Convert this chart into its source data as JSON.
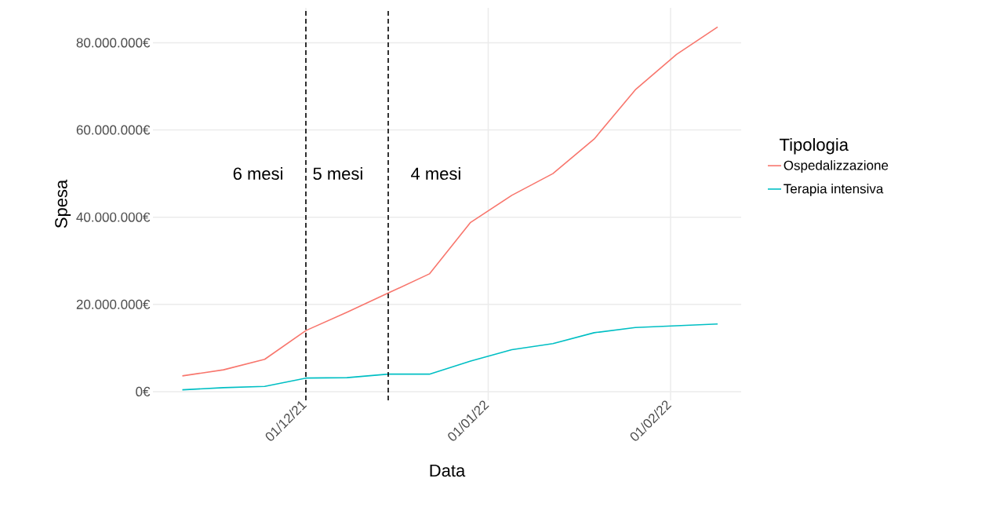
{
  "chart_data": {
    "type": "line",
    "xlabel": "Data",
    "ylabel": "Spesa",
    "legend_title": "Tipologia",
    "legend": "right",
    "grid": true,
    "x": [
      "2021-11-10",
      "2021-11-17",
      "2021-11-24",
      "2021-12-01",
      "2021-12-08",
      "2021-12-15",
      "2021-12-22",
      "2021-12-29",
      "2022-01-05",
      "2022-01-12",
      "2022-01-19",
      "2022-01-26",
      "2022-02-02",
      "2022-02-09"
    ],
    "series": [
      {
        "name": "Ospedalizzazione",
        "color": "#f8766d",
        "values": [
          3600000,
          5000000,
          7400000,
          14000000,
          18200000,
          22600000,
          27000000,
          38800000,
          45000000,
          50000000,
          57900000,
          69200000,
          77300000,
          83600000
        ]
      },
      {
        "name": "Terapia intensiva",
        "color": "#00bfc4",
        "values": [
          400000,
          900000,
          1200000,
          3100000,
          3200000,
          4000000,
          4000000,
          7000000,
          9600000,
          11000000,
          13500000,
          14700000,
          15100000,
          15500000
        ]
      }
    ],
    "xlim": [
      "2021-11-05",
      "2022-02-13"
    ],
    "ylim": [
      -2000000,
      88000000
    ],
    "xticks": [
      {
        "value": "2021-12-01",
        "label": "01/12/21"
      },
      {
        "value": "2022-01-01",
        "label": "01/01/22"
      },
      {
        "value": "2022-02-01",
        "label": "01/02/22"
      }
    ],
    "yticks": [
      {
        "value": 0,
        "label": "0€"
      },
      {
        "value": 20000000,
        "label": "20.000.000€"
      },
      {
        "value": 40000000,
        "label": "40.000.000€"
      },
      {
        "value": 60000000,
        "label": "60.000.000€"
      },
      {
        "value": 80000000,
        "label": "80.000.000€"
      }
    ],
    "ref_lines": [
      {
        "axis": "x",
        "value": "2021-12-01",
        "color": "#000000",
        "line_style": "dashed"
      },
      {
        "axis": "x",
        "value": "2021-12-15",
        "color": "#000000",
        "line_style": "dashed"
      }
    ],
    "annotations": [
      "6 mesi",
      "5 mesi",
      "4 mesi"
    ]
  }
}
